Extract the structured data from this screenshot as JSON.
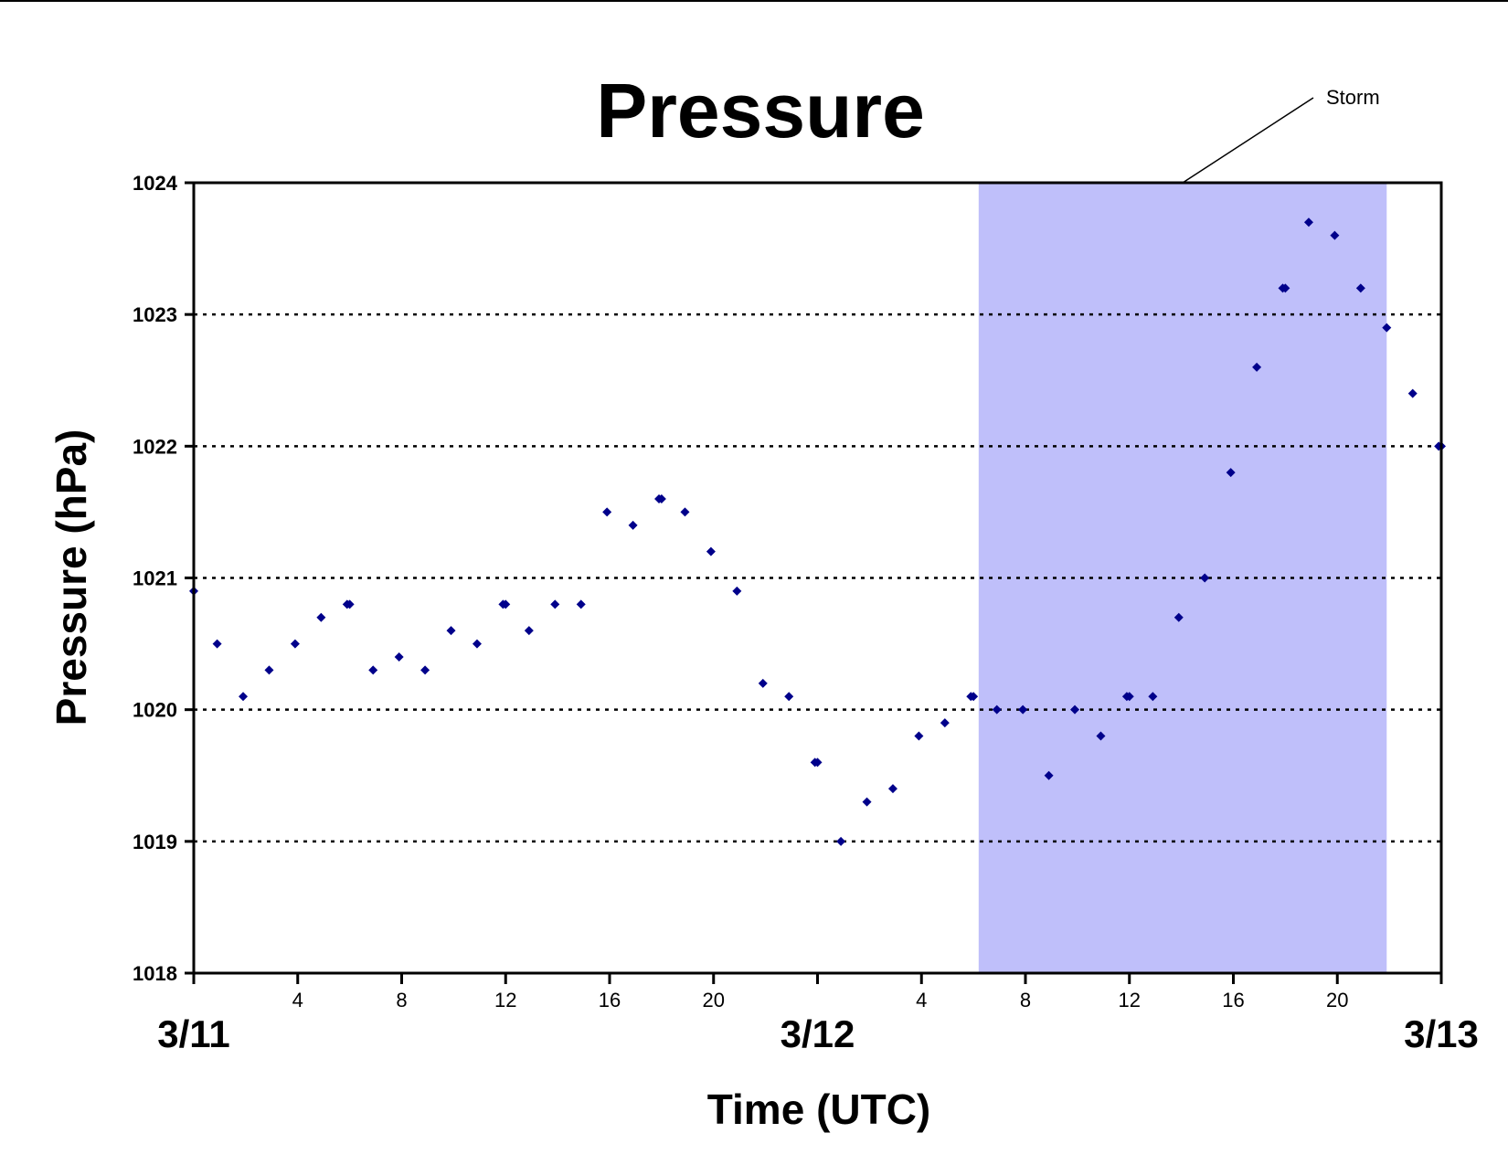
{
  "chart_data": {
    "type": "scatter",
    "title": "Pressure",
    "xlabel": "Time (UTC)",
    "ylabel": "Pressure (hPa)",
    "ylim": [
      1018,
      1024
    ],
    "yticks": [
      1018,
      1019,
      1020,
      1021,
      1022,
      1023,
      1024
    ],
    "xlim_hours": [
      0,
      48
    ],
    "hour_ticks": [
      0,
      4,
      8,
      12,
      16,
      20,
      24,
      28,
      32,
      36,
      40,
      44,
      48
    ],
    "hour_tick_labels": [
      {
        "hour": 4,
        "label": "4"
      },
      {
        "hour": 8,
        "label": "8"
      },
      {
        "hour": 12,
        "label": "12"
      },
      {
        "hour": 16,
        "label": "16"
      },
      {
        "hour": 20,
        "label": "20"
      },
      {
        "hour": 28,
        "label": "4"
      },
      {
        "hour": 32,
        "label": "8"
      },
      {
        "hour": 36,
        "label": "12"
      },
      {
        "hour": 40,
        "label": "16"
      },
      {
        "hour": 44,
        "label": "20"
      }
    ],
    "date_labels": [
      {
        "hour": 0,
        "label": "3/11"
      },
      {
        "hour": 24,
        "label": "3/12"
      },
      {
        "hour": 48,
        "label": "3/13"
      }
    ],
    "grid": "horizontal dotted",
    "colors": {
      "points": "#00008b",
      "storm_band": "#bfbffa"
    },
    "shaded_region": {
      "label": "Storm",
      "start_hour": 30.2,
      "end_hour": 45.9
    },
    "series": [
      {
        "points": [
          [
            0,
            1020.9
          ],
          [
            0.9,
            1020.5
          ],
          [
            1.9,
            1020.1
          ],
          [
            2.9,
            1020.3
          ],
          [
            3.9,
            1020.5
          ],
          [
            4.9,
            1020.7
          ],
          [
            5.9,
            1020.8
          ],
          [
            6.0,
            1020.8
          ],
          [
            6.9,
            1020.3
          ],
          [
            7.9,
            1020.4
          ],
          [
            8.9,
            1020.3
          ],
          [
            9.9,
            1020.6
          ],
          [
            10.9,
            1020.5
          ],
          [
            11.9,
            1020.8
          ],
          [
            12.0,
            1020.8
          ],
          [
            12.9,
            1020.6
          ],
          [
            13.9,
            1020.8
          ],
          [
            14.9,
            1020.8
          ],
          [
            15.9,
            1021.5
          ],
          [
            16.9,
            1021.4
          ],
          [
            17.9,
            1021.6
          ],
          [
            18.0,
            1021.6
          ],
          [
            18.9,
            1021.5
          ],
          [
            19.9,
            1021.2
          ],
          [
            20.9,
            1020.9
          ],
          [
            21.9,
            1020.2
          ],
          [
            22.9,
            1020.1
          ],
          [
            23.9,
            1019.6
          ],
          [
            24.0,
            1019.6
          ],
          [
            24.9,
            1019.0
          ],
          [
            25.9,
            1019.3
          ],
          [
            26.9,
            1019.4
          ],
          [
            27.9,
            1019.8
          ],
          [
            28.9,
            1019.9
          ],
          [
            29.9,
            1020.1
          ],
          [
            30.0,
            1020.1
          ],
          [
            30.9,
            1020.0
          ],
          [
            31.9,
            1020.0
          ],
          [
            32.9,
            1019.5
          ],
          [
            33.9,
            1020.0
          ],
          [
            34.9,
            1019.8
          ],
          [
            35.9,
            1020.1
          ],
          [
            36.0,
            1020.1
          ],
          [
            36.9,
            1020.1
          ],
          [
            37.9,
            1020.7
          ],
          [
            38.9,
            1021.0
          ],
          [
            39.9,
            1021.8
          ],
          [
            40.9,
            1022.6
          ],
          [
            41.9,
            1023.2
          ],
          [
            42.0,
            1023.2
          ],
          [
            42.9,
            1023.7
          ],
          [
            43.9,
            1023.6
          ],
          [
            44.9,
            1023.2
          ],
          [
            45.9,
            1022.9
          ],
          [
            46.9,
            1022.4
          ],
          [
            47.9,
            1022.0
          ],
          [
            48.0,
            1022.0
          ]
        ]
      }
    ]
  }
}
